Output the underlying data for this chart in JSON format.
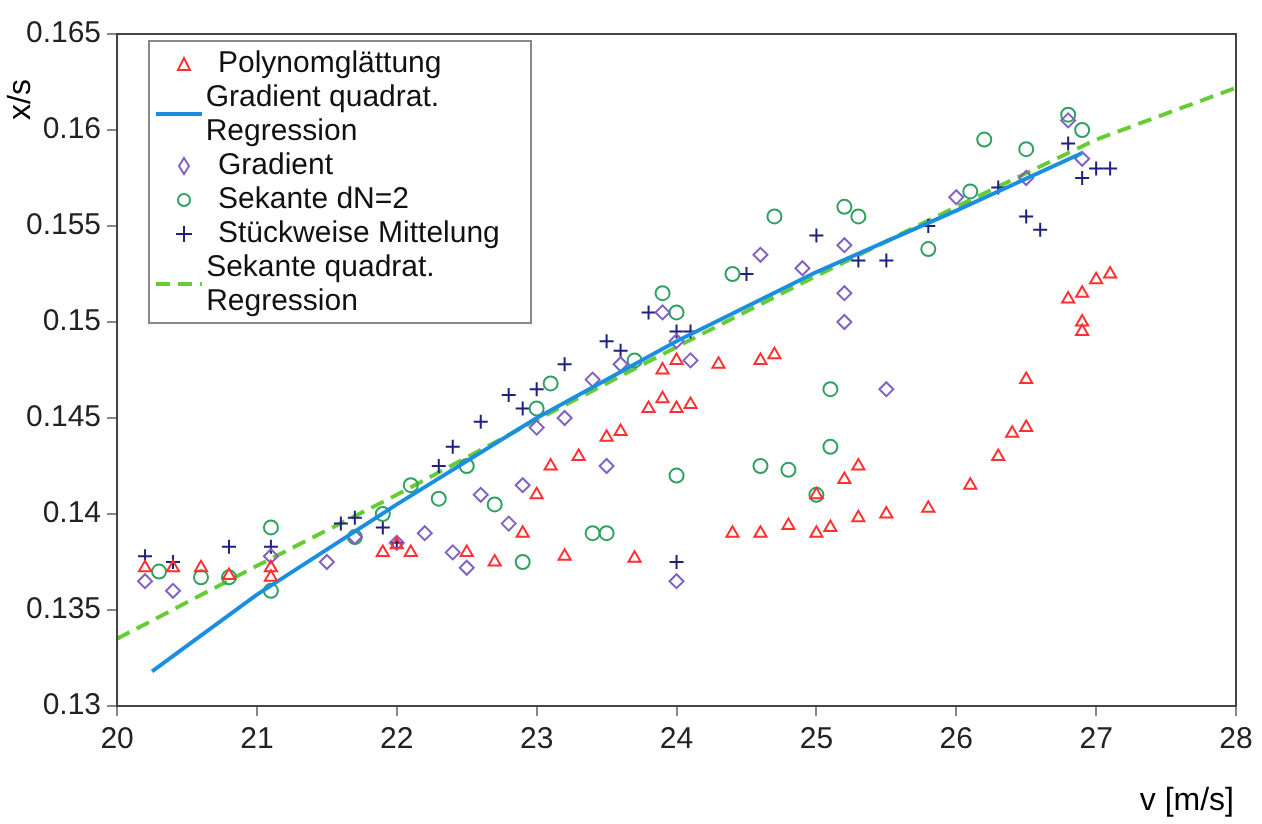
{
  "chart_data": {
    "type": "scatter",
    "xlabel": "v [m/s]",
    "ylabel": "x/s",
    "xlim": [
      20,
      28
    ],
    "xticks": [
      20,
      21,
      22,
      23,
      24,
      25,
      26,
      27,
      28
    ],
    "ylim": [
      0.13,
      0.165
    ],
    "yticks": [
      0.13,
      0.135,
      0.14,
      0.145,
      0.15,
      0.155,
      0.16,
      0.165
    ],
    "grid": false,
    "legend": "top left",
    "series": [
      {
        "name": "Polynomglättung",
        "marker": "triangle",
        "color": "#ff3030",
        "x": [
          20.2,
          20.4,
          20.6,
          20.8,
          21.1,
          21.1,
          21.9,
          22.0,
          22.1,
          22.5,
          22.7,
          22.9,
          23.0,
          23.1,
          23.3,
          23.5,
          23.6,
          23.8,
          23.9,
          24.0,
          24.1,
          23.9,
          24.0,
          24.3,
          24.6,
          24.7,
          23.2,
          23.7,
          24.4,
          24.6,
          24.8,
          25.0,
          25.1,
          25.3,
          25.5,
          25.8,
          26.1,
          26.3,
          26.4,
          26.5,
          26.5,
          26.8,
          26.9,
          27.0,
          27.1,
          26.9,
          26.9,
          25.0,
          25.2,
          25.3
        ],
        "values": [
          0.1372,
          0.1372,
          0.1372,
          0.1368,
          0.1367,
          0.1372,
          0.138,
          0.1384,
          0.138,
          0.138,
          0.1375,
          0.139,
          0.141,
          0.1425,
          0.143,
          0.144,
          0.1443,
          0.1455,
          0.146,
          0.1455,
          0.1457,
          0.1475,
          0.148,
          0.1478,
          0.148,
          0.1483,
          0.1378,
          0.1377,
          0.139,
          0.139,
          0.1394,
          0.139,
          0.1393,
          0.1398,
          0.14,
          0.1403,
          0.1415,
          0.143,
          0.1442,
          0.1445,
          0.147,
          0.1512,
          0.1515,
          0.1522,
          0.1525,
          0.15,
          0.1495,
          0.141,
          0.1418,
          0.1425
        ]
      },
      {
        "name": "Gradient quadrat. Regression",
        "type": "line",
        "marker": "none",
        "line_style": "solid",
        "color": "#1a8fe0",
        "x": [
          20.25,
          21,
          22,
          23,
          24,
          25,
          26,
          26.9
        ],
        "values": [
          0.1318,
          0.1358,
          0.1405,
          0.145,
          0.149,
          0.1526,
          0.1558,
          0.1588
        ]
      },
      {
        "name": "Gradient",
        "marker": "diamond",
        "color": "#8060c0",
        "x": [
          20.2,
          20.4,
          21.1,
          21.7,
          22.0,
          22.2,
          22.4,
          22.6,
          22.8,
          22.9,
          23.0,
          23.2,
          23.4,
          23.6,
          23.9,
          24.0,
          24.1,
          24.0,
          24.6,
          24.9,
          25.2,
          25.2,
          25.2,
          25.5,
          26.0,
          26.5,
          26.8,
          26.9,
          23.5,
          22.5,
          21.5
        ],
        "values": [
          0.1365,
          0.136,
          0.1378,
          0.1388,
          0.1385,
          0.139,
          0.138,
          0.141,
          0.1395,
          0.1415,
          0.1445,
          0.145,
          0.147,
          0.1478,
          0.1505,
          0.149,
          0.148,
          0.1365,
          0.1535,
          0.1528,
          0.154,
          0.1515,
          0.15,
          0.1465,
          0.1565,
          0.1575,
          0.1605,
          0.1585,
          0.1425,
          0.1372,
          0.1375
        ]
      },
      {
        "name": "Sekante dN=2",
        "marker": "circle",
        "color": "#30a060",
        "x": [
          20.3,
          20.6,
          20.8,
          21.1,
          21.1,
          21.7,
          21.9,
          22.1,
          22.3,
          22.5,
          22.7,
          22.9,
          23.0,
          23.1,
          23.4,
          23.5,
          23.7,
          23.9,
          24.0,
          24.0,
          24.4,
          24.7,
          24.6,
          24.8,
          25.0,
          25.1,
          25.1,
          25.2,
          25.3,
          26.1,
          26.5,
          26.8,
          26.9,
          26.2,
          25.8
        ],
        "values": [
          0.137,
          0.1367,
          0.1367,
          0.1393,
          0.136,
          0.1388,
          0.14,
          0.1415,
          0.1408,
          0.1425,
          0.1405,
          0.1375,
          0.1455,
          0.1468,
          0.139,
          0.139,
          0.148,
          0.1515,
          0.1505,
          0.142,
          0.1525,
          0.1555,
          0.1425,
          0.1423,
          0.141,
          0.1435,
          0.1465,
          0.156,
          0.1555,
          0.1568,
          0.159,
          0.1608,
          0.16,
          0.1595,
          0.1538
        ]
      },
      {
        "name": "Stückweise Mittelung",
        "marker": "cross",
        "color": "#202080",
        "x": [
          20.2,
          20.4,
          20.8,
          21.1,
          21.6,
          21.7,
          21.9,
          22.0,
          22.3,
          22.6,
          22.8,
          22.9,
          23.0,
          23.2,
          23.5,
          23.8,
          24.0,
          24.0,
          24.1,
          24.5,
          25.0,
          25.3,
          25.5,
          25.8,
          26.3,
          26.5,
          26.6,
          26.8,
          26.9,
          27.0,
          27.1,
          22.4,
          23.6
        ],
        "values": [
          0.1378,
          0.1375,
          0.1383,
          0.1383,
          0.1395,
          0.1398,
          0.1393,
          0.1385,
          0.1425,
          0.1448,
          0.1462,
          0.1455,
          0.1465,
          0.1478,
          0.149,
          0.1505,
          0.1495,
          0.1375,
          0.1495,
          0.1525,
          0.1545,
          0.1532,
          0.1532,
          0.155,
          0.157,
          0.1555,
          0.1548,
          0.1593,
          0.1575,
          0.158,
          0.158,
          0.1435,
          0.1485
        ]
      },
      {
        "name": "Sekante quadrat. Regression",
        "type": "line",
        "marker": "none",
        "line_style": "dashed",
        "color": "#66cc33",
        "x": [
          20,
          21,
          22,
          23,
          24,
          25,
          26,
          27,
          28
        ],
        "values": [
          0.1335,
          0.1373,
          0.141,
          0.1449,
          0.1487,
          0.1524,
          0.156,
          0.1595,
          0.1622
        ]
      }
    ]
  }
}
